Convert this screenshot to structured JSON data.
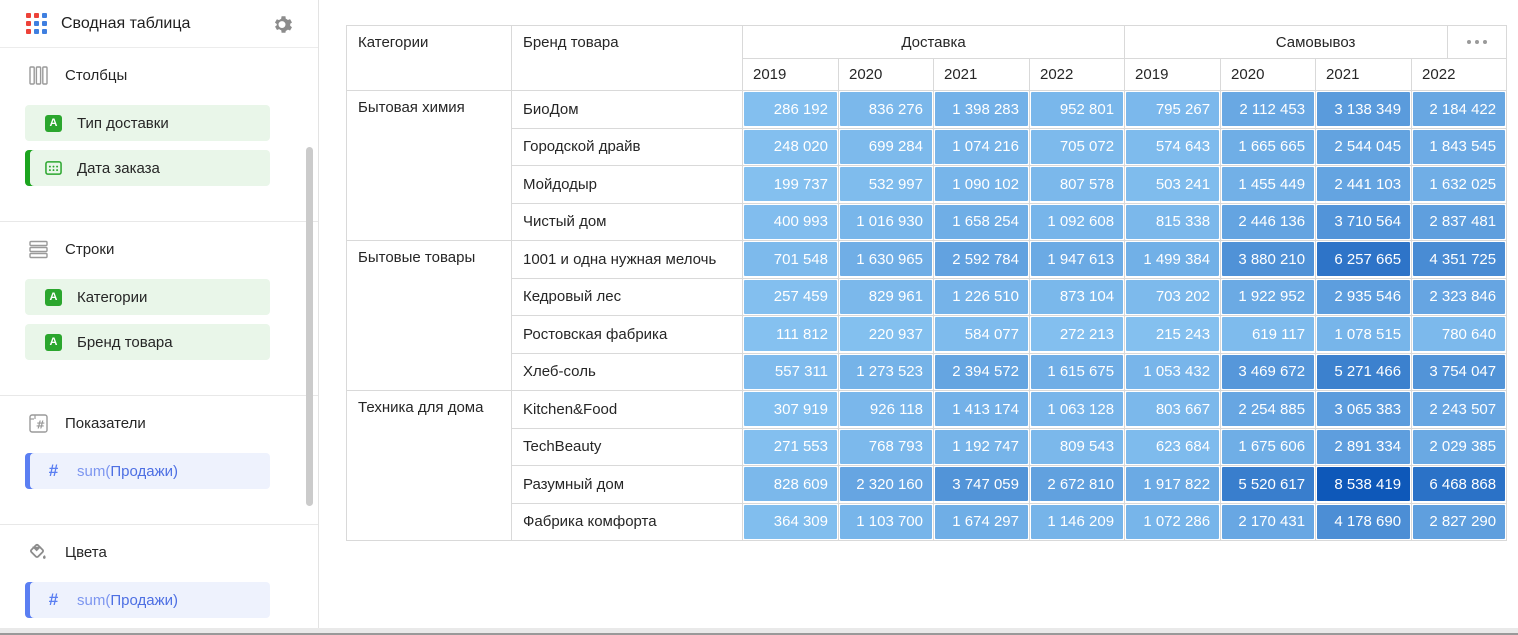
{
  "sidebar": {
    "title": "Сводная таблица",
    "sections": {
      "columns": {
        "label": "Столбцы",
        "items": [
          {
            "label": "Тип доставки"
          },
          {
            "label": "Дата заказа",
            "active": true
          }
        ]
      },
      "rows": {
        "label": "Строки",
        "items": [
          {
            "label": "Категории"
          },
          {
            "label": "Бренд товара"
          }
        ]
      },
      "measures": {
        "label": "Показатели",
        "items": [
          {
            "fn": "sum(",
            "field": "Продажи)",
            "active": true
          }
        ]
      },
      "colors": {
        "label": "Цвета",
        "items": [
          {
            "fn": "sum(",
            "field": "Продажи)",
            "active": true
          }
        ]
      }
    }
  },
  "icons": {
    "logo": "pivot-grid-icon",
    "settings": "gear-icon",
    "columns": "vertical-bars-icon",
    "rows": "horizontal-bars-icon",
    "measures": "number-table-icon",
    "colors": "paint-bucket-icon",
    "dimension": "letter-a-icon",
    "date": "calendar-icon",
    "measure_field": "hash-icon",
    "widget_menu": "ellipsis-icon"
  },
  "ui_colors": {
    "dimension_green_bg": "#E9F6E9",
    "dimension_green_icon": "#2BA62E",
    "dimension_green_accent": "#1CA41F",
    "measure_blue_bg": "#EEF2FD",
    "measure_blue_text": "#4D6FE3",
    "measure_blue_accent": "#5B7FF2",
    "logo_red": "#ED4239",
    "logo_blue": "#3F7FE0"
  },
  "table": {
    "row_headers": [
      "Категории",
      "Бренд товара"
    ],
    "column_groups": [
      {
        "label": "Доставка",
        "years": [
          "2019",
          "2020",
          "2021",
          "2022"
        ]
      },
      {
        "label": "Самовывоз",
        "years": [
          "2019",
          "2020",
          "2021",
          "2022"
        ]
      }
    ]
  },
  "chart_data": {
    "type": "table",
    "columns": [
      "Доставка 2019",
      "Доставка 2020",
      "Доставка 2021",
      "Доставка 2022",
      "Самовывоз 2019",
      "Самовывоз 2020",
      "Самовывоз 2021",
      "Самовывоз 2022"
    ],
    "row_groups": [
      {
        "category": "Бытовая химия",
        "rows": [
          {
            "brand": "БиоДом",
            "values": [
              286192,
              836276,
              1398283,
              952801,
              795267,
              2112453,
              3138349,
              2184422
            ]
          },
          {
            "brand": "Городской драйв",
            "values": [
              248020,
              699284,
              1074216,
              705072,
              574643,
              1665665,
              2544045,
              1843545
            ]
          },
          {
            "brand": "Мойдодыр",
            "values": [
              199737,
              532997,
              1090102,
              807578,
              503241,
              1455449,
              2441103,
              1632025
            ]
          },
          {
            "brand": "Чистый дом",
            "values": [
              400993,
              1016930,
              1658254,
              1092608,
              815338,
              2446136,
              3710564,
              2837481
            ]
          }
        ]
      },
      {
        "category": "Бытовые товары",
        "rows": [
          {
            "brand": "1001 и одна нужная мелочь",
            "values": [
              701548,
              1630965,
              2592784,
              1947613,
              1499384,
              3880210,
              6257665,
              4351725
            ]
          },
          {
            "brand": "Кедровый лес",
            "values": [
              257459,
              829961,
              1226510,
              873104,
              703202,
              1922952,
              2935546,
              2323846
            ]
          },
          {
            "brand": "Ростовская фабрика",
            "values": [
              111812,
              220937,
              584077,
              272213,
              215243,
              619117,
              1078515,
              780640
            ]
          },
          {
            "brand": "Хлеб-соль",
            "values": [
              557311,
              1273523,
              2394572,
              1615675,
              1053432,
              3469672,
              5271466,
              3754047
            ]
          }
        ]
      },
      {
        "category": "Техника для дома",
        "rows": [
          {
            "brand": "Kitchen&Food",
            "values": [
              307919,
              926118,
              1413174,
              1063128,
              803667,
              2254885,
              3065383,
              2243507
            ]
          },
          {
            "brand": "TechBeauty",
            "values": [
              271553,
              768793,
              1192747,
              809543,
              623684,
              1675606,
              2891334,
              2029385
            ]
          },
          {
            "brand": "Разумный дом",
            "values": [
              828609,
              2320160,
              3747059,
              2672810,
              1917822,
              5520617,
              8538419,
              6468868
            ]
          },
          {
            "brand": "Фабрика комфорта",
            "values": [
              364309,
              1103700,
              1674297,
              1146209,
              1072286,
              2170431,
              4178690,
              2827290
            ]
          }
        ]
      }
    ],
    "color_scale": {
      "min_color": "#85C1F0",
      "max_color": "#0E58B9"
    }
  }
}
